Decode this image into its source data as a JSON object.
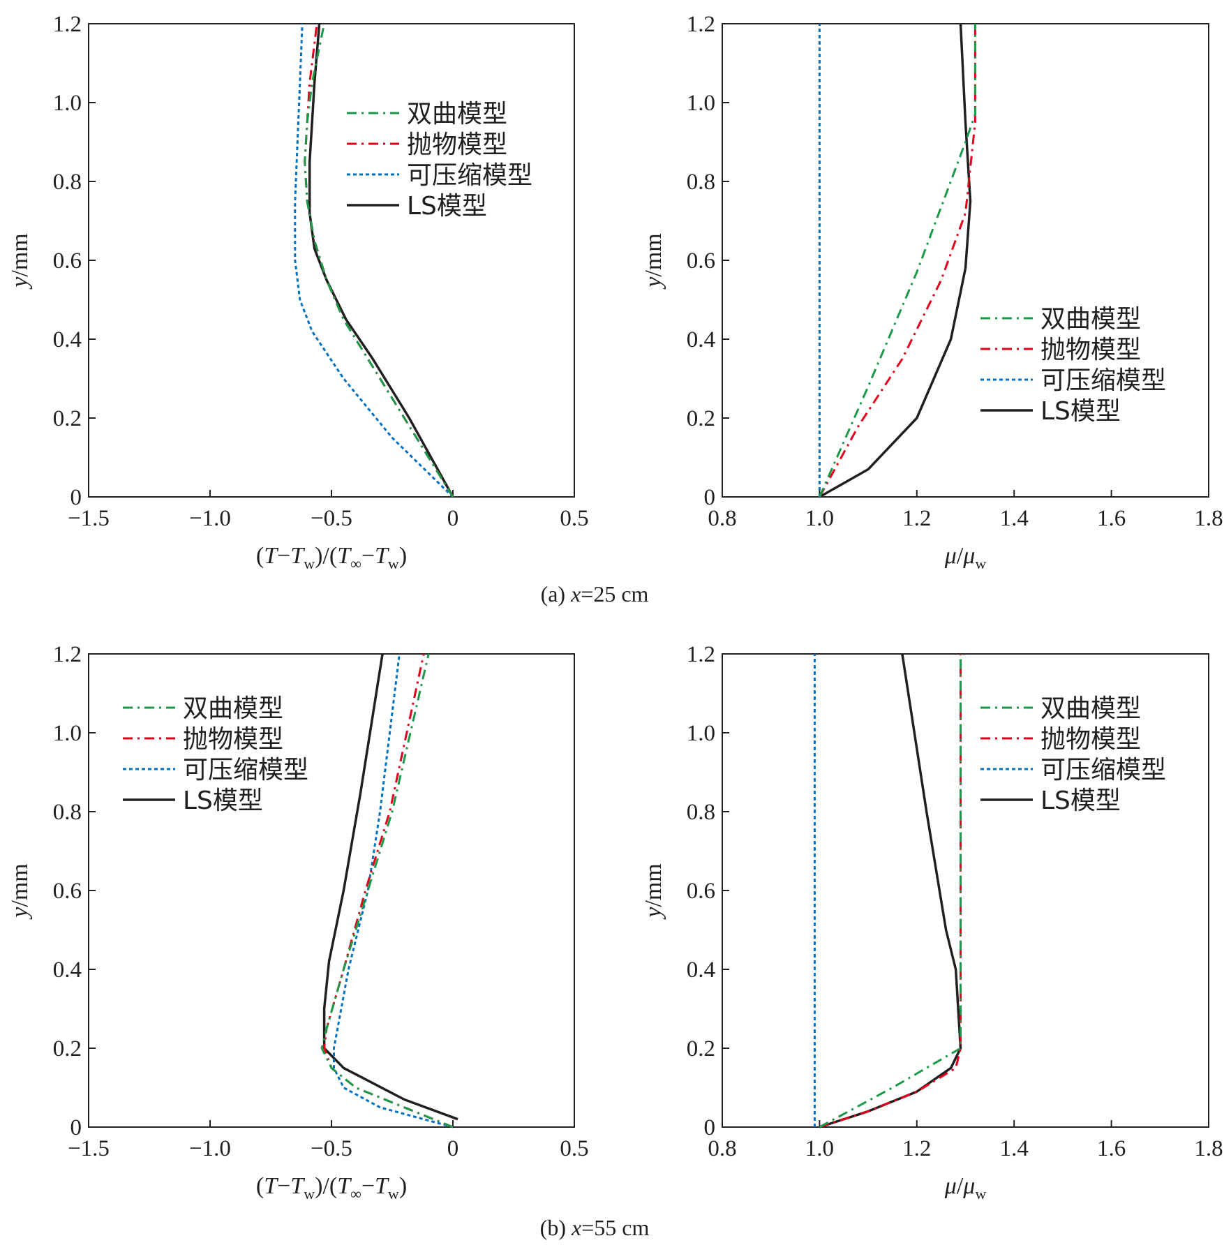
{
  "legend_styles": {
    "hyperbolic": {
      "color": "#1a9a48",
      "dash": "14,7,3,7"
    },
    "parabolic": {
      "color": "#e2001a",
      "dash": "14,7,3,7"
    },
    "compressible": {
      "color": "#0070c0",
      "dash": "5,4"
    },
    "ls": {
      "color": "#231f20",
      "dash": ""
    }
  },
  "captions": {
    "a": "(a) x=25 cm",
    "b": "(b) x=55 cm"
  },
  "chart_data": [
    {
      "type": "line",
      "panel": "a-left",
      "xlabel": "(T−Tw)/(T∞−Tw)",
      "ylabel": "y/mm",
      "xlim": [
        -1.5,
        0.5
      ],
      "ylim": [
        0,
        1.2
      ],
      "xticks": [
        "−1.5",
        "−1.0",
        "−0.5",
        "0",
        "0.5"
      ],
      "yticks": [
        "0",
        "0.2",
        "0.4",
        "0.6",
        "0.8",
        "1.0",
        "1.2"
      ],
      "legend_position": "top-right",
      "series": [
        {
          "name": "双曲模型",
          "style": "hyperbolic",
          "x": [
            0,
            -0.2,
            -0.35,
            -0.45,
            -0.52,
            -0.57,
            -0.6,
            -0.61,
            -0.6,
            -0.58,
            -0.53
          ],
          "y": [
            0,
            0.2,
            0.35,
            0.45,
            0.55,
            0.65,
            0.75,
            0.85,
            0.95,
            1.05,
            1.2
          ]
        },
        {
          "name": "抛物模型",
          "style": "parabolic",
          "x": [
            0,
            -0.2,
            -0.35,
            -0.45,
            -0.52,
            -0.57,
            -0.6,
            -0.61,
            -0.6,
            -0.59,
            -0.56
          ],
          "y": [
            0,
            0.2,
            0.35,
            0.45,
            0.55,
            0.65,
            0.75,
            0.85,
            0.95,
            1.05,
            1.2
          ]
        },
        {
          "name": "可压缩模型",
          "style": "compressible",
          "x": [
            0,
            -0.25,
            -0.45,
            -0.58,
            -0.63,
            -0.65,
            -0.65,
            -0.64,
            -0.63,
            -0.62
          ],
          "y": [
            0,
            0.15,
            0.3,
            0.42,
            0.5,
            0.6,
            0.75,
            0.9,
            1.05,
            1.2
          ]
        },
        {
          "name": "LS模型",
          "style": "ls",
          "x": [
            0,
            -0.18,
            -0.33,
            -0.44,
            -0.52,
            -0.57,
            -0.59,
            -0.59,
            -0.58,
            -0.57,
            -0.55
          ],
          "y": [
            0,
            0.2,
            0.35,
            0.45,
            0.55,
            0.63,
            0.72,
            0.85,
            0.95,
            1.05,
            1.2
          ]
        }
      ]
    },
    {
      "type": "line",
      "panel": "a-right",
      "xlabel": "μ/μw",
      "ylabel": "y/mm",
      "xlim": [
        0.8,
        1.8
      ],
      "ylim": [
        0,
        1.2
      ],
      "xticks": [
        "0.8",
        "1.0",
        "1.2",
        "1.4",
        "1.6",
        "1.8"
      ],
      "yticks": [
        "0",
        "0.2",
        "0.4",
        "0.6",
        "0.8",
        "1.0",
        "1.2"
      ],
      "legend_position": "bottom-right",
      "series": [
        {
          "name": "双曲模型",
          "style": "hyperbolic",
          "x": [
            1.0,
            1.1,
            1.2,
            1.3,
            1.32,
            1.32
          ],
          "y": [
            0,
            0.28,
            0.57,
            0.9,
            0.97,
            1.2
          ]
        },
        {
          "name": "抛物模型",
          "style": "parabolic",
          "x": [
            1.0,
            1.08,
            1.17,
            1.25,
            1.3,
            1.32,
            1.32
          ],
          "y": [
            0,
            0.18,
            0.35,
            0.55,
            0.72,
            0.95,
            1.2
          ]
        },
        {
          "name": "可压缩模型",
          "style": "compressible",
          "x": [
            1.0,
            1.0
          ],
          "y": [
            0,
            1.2
          ]
        },
        {
          "name": "LS模型",
          "style": "ls",
          "x": [
            1.0,
            1.1,
            1.2,
            1.27,
            1.3,
            1.31,
            1.3,
            1.29
          ],
          "y": [
            0,
            0.07,
            0.2,
            0.4,
            0.58,
            0.75,
            0.95,
            1.2
          ]
        }
      ]
    },
    {
      "type": "line",
      "panel": "b-left",
      "xlabel": "(T−Tw)/(T∞−Tw)",
      "ylabel": "y/mm",
      "xlim": [
        -1.5,
        0.5
      ],
      "ylim": [
        0,
        1.2
      ],
      "xticks": [
        "−1.5",
        "−1.0",
        "−0.5",
        "0",
        "0.5"
      ],
      "yticks": [
        "0",
        "0.2",
        "0.4",
        "0.6",
        "0.8",
        "1.0",
        "1.2"
      ],
      "legend_position": "top-left",
      "series": [
        {
          "name": "双曲模型",
          "style": "hyperbolic",
          "x": [
            0,
            -0.2,
            -0.4,
            -0.5,
            -0.54,
            -0.52,
            -0.45,
            -0.35,
            -0.25,
            -0.1
          ],
          "y": [
            0,
            0.05,
            0.1,
            0.15,
            0.2,
            0.25,
            0.4,
            0.6,
            0.8,
            1.2
          ]
        },
        {
          "name": "抛物模型",
          "style": "parabolic",
          "x": [
            0,
            -0.2,
            -0.4,
            -0.5,
            -0.53,
            -0.52,
            -0.45,
            -0.36,
            -0.26,
            -0.12
          ],
          "y": [
            0,
            0.05,
            0.1,
            0.15,
            0.2,
            0.25,
            0.4,
            0.6,
            0.8,
            1.2
          ]
        },
        {
          "name": "可压缩模型",
          "style": "compressible",
          "x": [
            0,
            -0.3,
            -0.45,
            -0.49,
            -0.49,
            -0.43,
            -0.35,
            -0.3,
            -0.22
          ],
          "y": [
            0,
            0.05,
            0.1,
            0.15,
            0.2,
            0.4,
            0.6,
            0.8,
            1.2
          ]
        },
        {
          "name": "LS模型",
          "style": "ls",
          "x": [
            0.02,
            -0.2,
            -0.45,
            -0.53,
            -0.53,
            -0.51,
            -0.45,
            -0.38,
            -0.29
          ],
          "y": [
            0.02,
            0.07,
            0.15,
            0.2,
            0.3,
            0.42,
            0.6,
            0.85,
            1.2
          ]
        }
      ]
    },
    {
      "type": "line",
      "panel": "b-right",
      "xlabel": "μ/μw",
      "ylabel": "y/mm",
      "xlim": [
        0.8,
        1.8
      ],
      "ylim": [
        0,
        1.2
      ],
      "xticks": [
        "0.8",
        "1.0",
        "1.2",
        "1.4",
        "1.6",
        "1.8"
      ],
      "yticks": [
        "0",
        "0.2",
        "0.4",
        "0.6",
        "0.8",
        "1.0",
        "1.2"
      ],
      "legend_position": "top-right",
      "series": [
        {
          "name": "双曲模型",
          "style": "hyperbolic",
          "x": [
            1.0,
            1.15,
            1.29,
            1.29
          ],
          "y": [
            0,
            0.1,
            0.2,
            1.2
          ]
        },
        {
          "name": "抛物模型",
          "style": "parabolic",
          "x": [
            1.0,
            1.1,
            1.2,
            1.28,
            1.29,
            1.29
          ],
          "y": [
            0,
            0.04,
            0.09,
            0.15,
            0.2,
            1.2
          ]
        },
        {
          "name": "可压缩模型",
          "style": "compressible",
          "x": [
            0.99,
            0.99
          ],
          "y": [
            0,
            1.2
          ]
        },
        {
          "name": "LS模型",
          "style": "ls",
          "x": [
            1.0,
            1.1,
            1.2,
            1.27,
            1.29,
            1.28,
            1.26,
            1.22,
            1.17
          ],
          "y": [
            0,
            0.04,
            0.09,
            0.15,
            0.2,
            0.4,
            0.5,
            0.8,
            1.2
          ]
        }
      ]
    }
  ]
}
